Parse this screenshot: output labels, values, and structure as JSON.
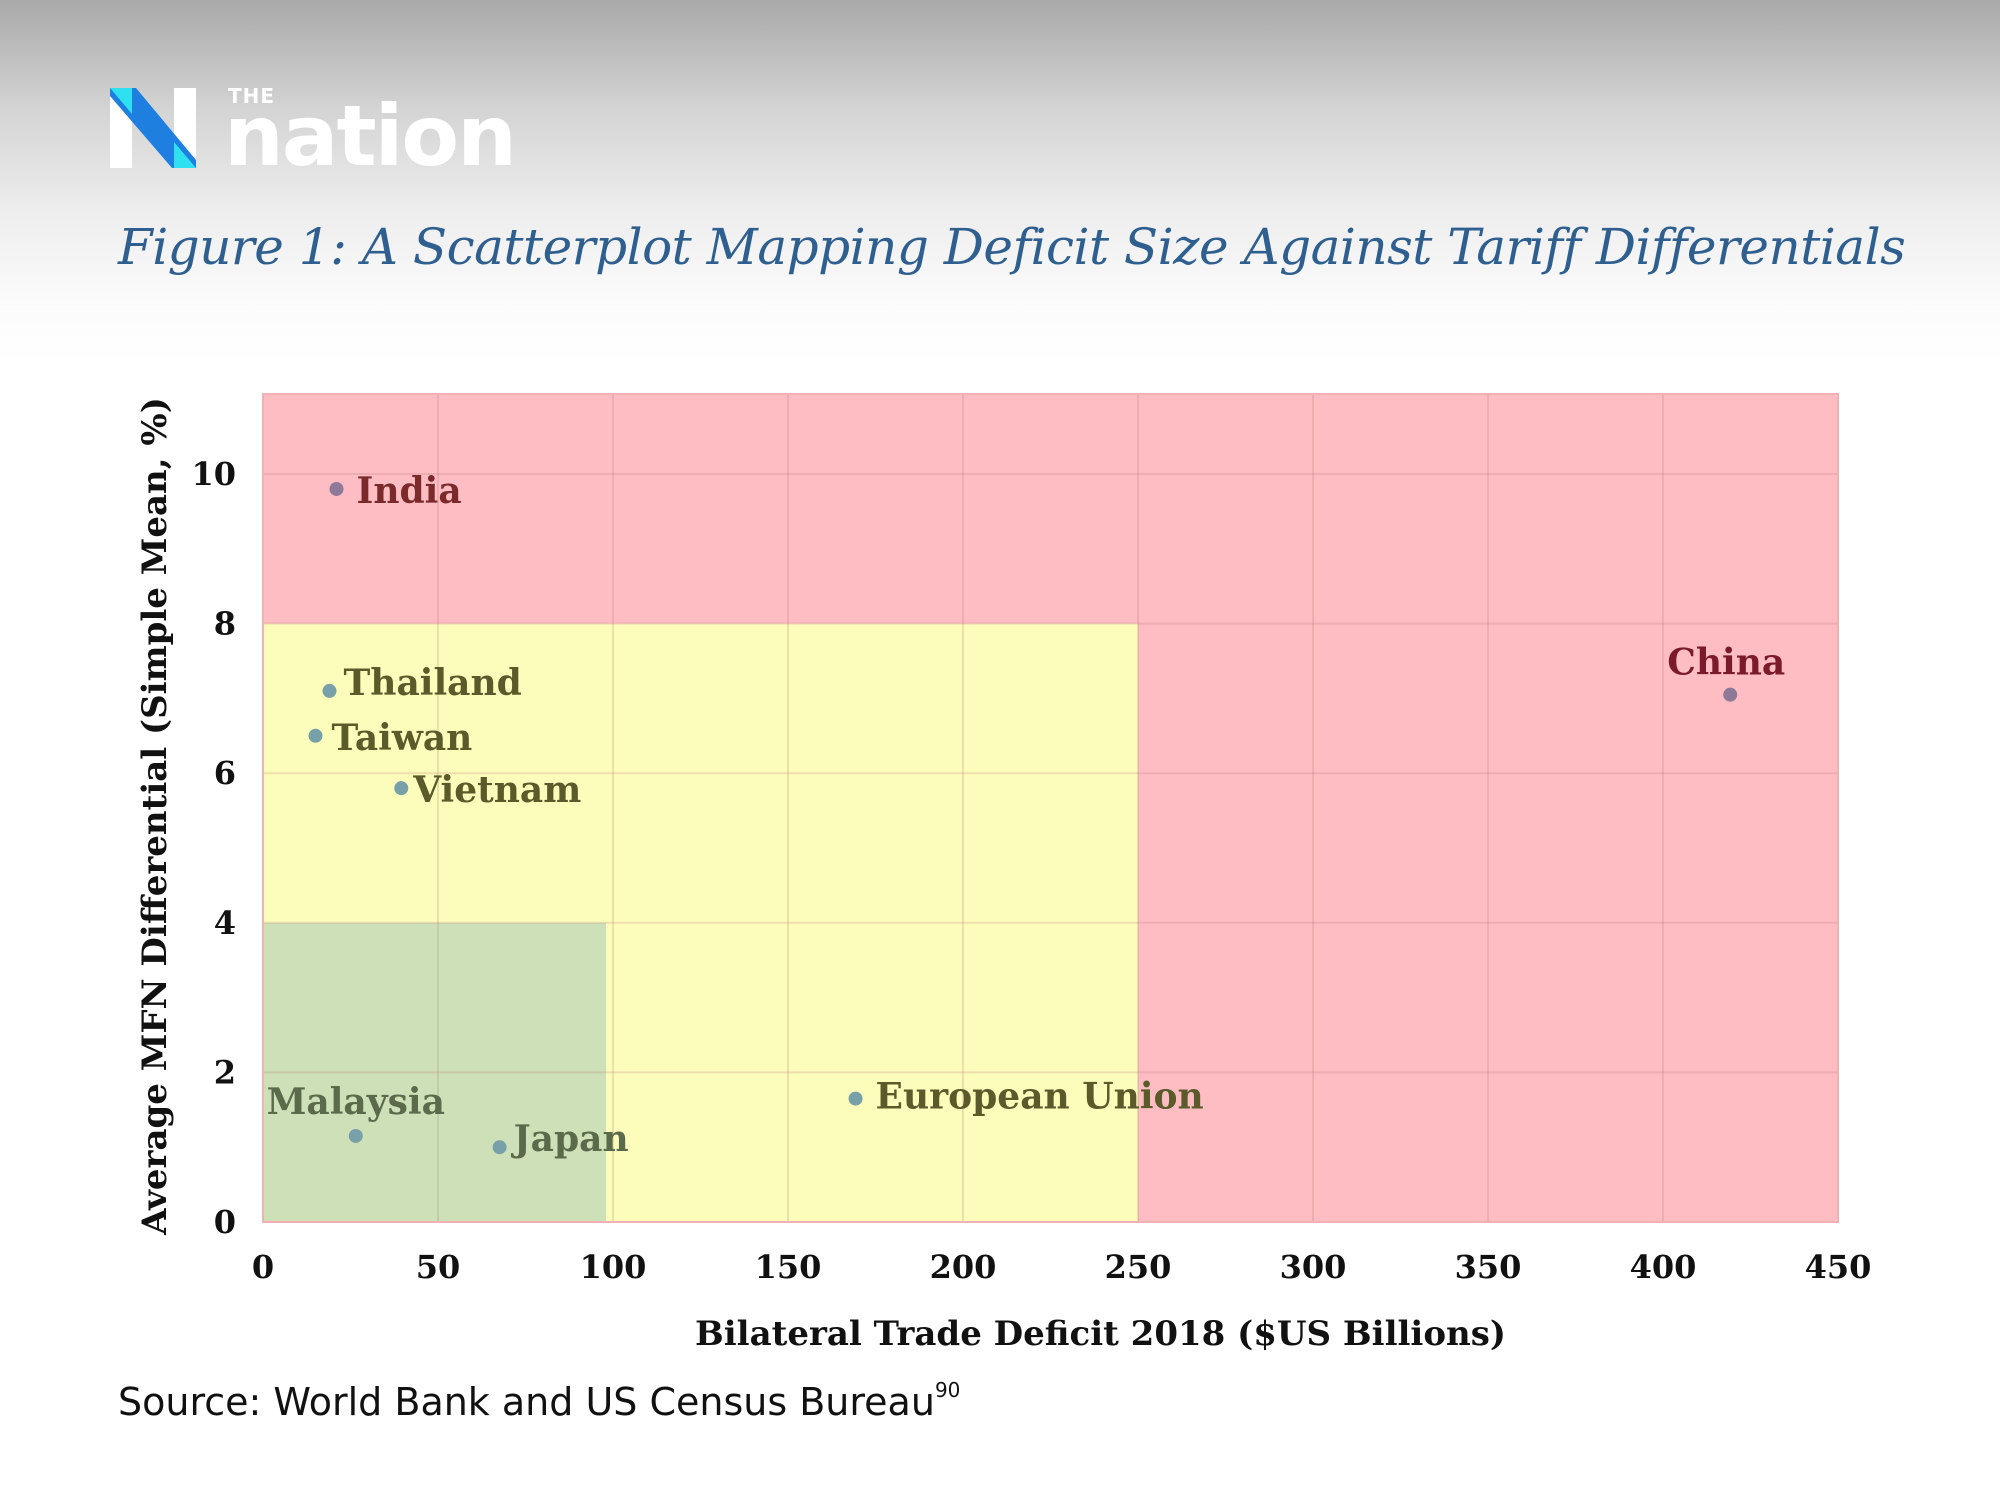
{
  "brand": {
    "the": "THE",
    "name": "nation",
    "icon": "nation-n-logo-icon",
    "colors": {
      "blue": "#1e7fe0",
      "cyan": "#2ee0f0",
      "white": "#ffffff"
    }
  },
  "figure_title": "Figure 1: A Scatterplot Mapping Deficit Size Against Tariff Differentials",
  "source": {
    "text": "Source: World Bank and US Census Bureau",
    "footnote": "90"
  },
  "chart_data": {
    "type": "scatter",
    "title": "",
    "xlabel": "Bilateral Trade Deficit 2018 ($US Billions)",
    "ylabel": "Average MFN Differential (Simple Mean, %)",
    "xlim": [
      0,
      450
    ],
    "ylim": [
      0,
      11
    ],
    "x_ticks": [
      "0",
      "50",
      "100",
      "150",
      "200",
      "250",
      "300",
      "350",
      "400",
      "450"
    ],
    "y_ticks": [
      "0",
      "2",
      "4",
      "6",
      "8",
      "10"
    ],
    "grid": true,
    "regions": [
      {
        "x": [
          0,
          450
        ],
        "y": [
          0,
          11
        ],
        "color": "#fdbdc2"
      },
      {
        "x": [
          0,
          250
        ],
        "y": [
          0,
          8
        ],
        "color": "#fdfdbb"
      },
      {
        "x": [
          0,
          98
        ],
        "y": [
          0,
          4
        ],
        "color": "#cde0b7"
      }
    ],
    "points": [
      {
        "label": "India",
        "x": 21,
        "y": 9.8,
        "color": "#8e7a98",
        "label_color": "#7a2a2a"
      },
      {
        "label": "Thailand",
        "x": 19,
        "y": 7.1,
        "color": "#78a0a8",
        "label_color": "#5a5a2a"
      },
      {
        "label": "Taiwan",
        "x": 15,
        "y": 6.5,
        "color": "#78a0a8",
        "label_color": "#5a5a2a"
      },
      {
        "label": "Vietnam",
        "x": 39.5,
        "y": 5.8,
        "color": "#78a0a8",
        "label_color": "#5a5a2a"
      },
      {
        "label": "Malaysia",
        "x": 26.5,
        "y": 1.15,
        "color": "#78a0a8",
        "label_color": "#5a6a4a"
      },
      {
        "label": "Japan",
        "x": 67.6,
        "y": 1.0,
        "color": "#78a0a8",
        "label_color": "#5a6a4a"
      },
      {
        "label": "European Union",
        "x": 169.3,
        "y": 1.65,
        "color": "#78a0a8",
        "label_color": "#5a5a2a"
      },
      {
        "label": "China",
        "x": 419.2,
        "y": 7.05,
        "color": "#8e7a98",
        "label_color": "#7a1a2a"
      }
    ]
  }
}
